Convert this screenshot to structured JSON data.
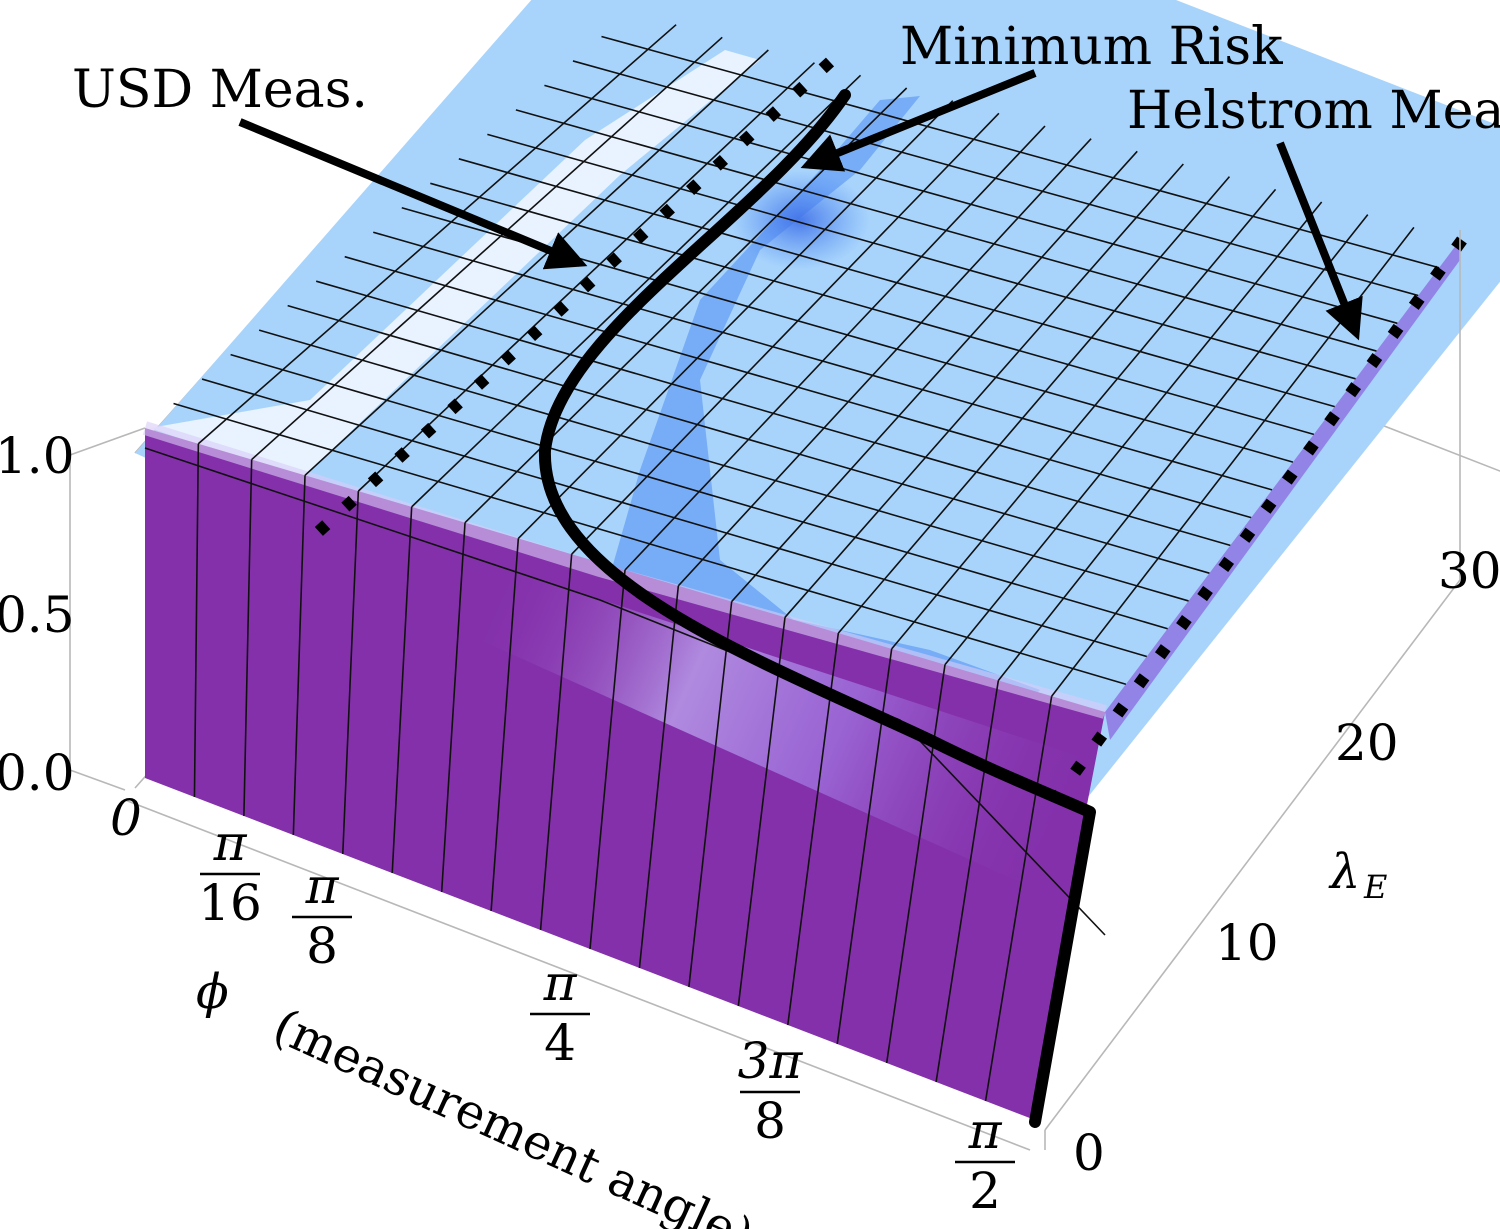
{
  "chart_data": {
    "type": "surface3d",
    "axes": {
      "x": {
        "label": "(measurement angle)",
        "symbol": "ϕ",
        "range": [
          "0",
          "π/2"
        ],
        "ticks": [
          {
            "value": 0,
            "num": "0",
            "den": ""
          },
          {
            "value": 0.19635,
            "num": "π",
            "den": "16"
          },
          {
            "value": 0.3927,
            "num": "π",
            "den": "8"
          },
          {
            "value": 0.7854,
            "num": "π",
            "den": "4"
          },
          {
            "value": 1.1781,
            "num": "3π",
            "den": "8"
          },
          {
            "value": 1.5708,
            "num": "π",
            "den": "2"
          }
        ]
      },
      "y": {
        "label": "λ",
        "sub": "E",
        "range": [
          0,
          33
        ],
        "ticks": [
          "0",
          "10",
          "20",
          "30"
        ]
      },
      "z": {
        "range": [
          0,
          1
        ],
        "ticks": [
          "0.0",
          "0.5",
          "1.0"
        ]
      }
    },
    "annotations": [
      {
        "id": "usd",
        "text": "USD Meas."
      },
      {
        "id": "minrisk",
        "text": "Minimum Risk"
      },
      {
        "id": "helstrom",
        "text": "Helstrom Meas."
      }
    ],
    "curves": [
      {
        "name": "USD Meas.",
        "style": "dotted"
      },
      {
        "name": "Minimum Risk",
        "style": "solid"
      },
      {
        "name": "Helstrom Meas.",
        "style": "dotted"
      }
    ],
    "colors": {
      "top_surface": "#a8d4fc",
      "top_highlight": "#eef6ff",
      "top_valley": "#4f8cf2",
      "front_face": "#8430ab",
      "front_glow": "#c7a8f2",
      "grid": "#111111",
      "box": "#b8b8b8"
    }
  }
}
